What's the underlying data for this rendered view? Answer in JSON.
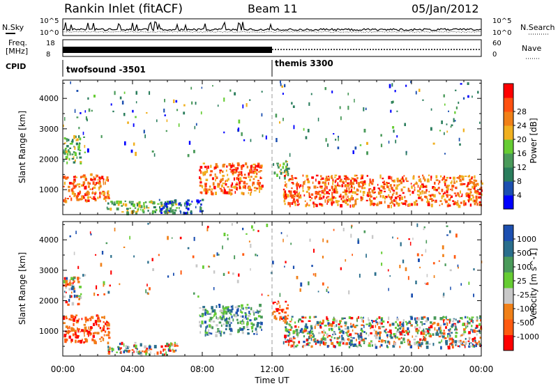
{
  "header": {
    "station": "Rankin Inlet (fitACF)",
    "beam": "Beam 11",
    "date": "05/Jan/2012"
  },
  "side_labels": {
    "nsky": "N.Sky",
    "freq_line1": "Freq.",
    "freq_line2": "[MHz]",
    "cpid": "CPID",
    "nsearch": "N.Search",
    "nave": "Nave"
  },
  "noise_axis": {
    "left_top": "10^5",
    "left_bottom": "10^0",
    "right_top": "10^5",
    "right_bottom": "10^0"
  },
  "freq_axis": {
    "left_top": "18",
    "left_bottom": "8",
    "right_top": "60",
    "right_bottom": "0"
  },
  "cpid_segments": [
    {
      "label": "twofsound -3501",
      "start": "00:00"
    },
    {
      "label": "themis 3300",
      "start": "12:00"
    }
  ],
  "colors": {
    "power": [
      "#0000ff",
      "#1c4fb0",
      "#2a7d5c",
      "#4a9a5a",
      "#66cc33",
      "#f0b020",
      "#f08018",
      "#ff5010",
      "#ff0000"
    ],
    "velocity": [
      "#ff0000",
      "#ff5a10",
      "#f08018",
      "#c8c8c8",
      "#66cc33",
      "#4a9a5a",
      "#2a6e8c",
      "#1c4fb0"
    ]
  },
  "chart_data": [
    {
      "type": "heatmap",
      "name": "power",
      "xlabel": "Time UT",
      "ylabel": "Slant Range [km]",
      "xlim": [
        0,
        24
      ],
      "ylim": [
        180,
        4600
      ],
      "x_ticks": [
        "00:00",
        "04:00",
        "08:00",
        "12:00",
        "16:00",
        "20:00",
        "00:00"
      ],
      "y_ticks": [
        1000,
        2000,
        3000,
        4000
      ],
      "colorbar_label": "Power [dB]",
      "colorbar_ticks": [
        "4",
        "8",
        "12",
        "16",
        "20",
        "24",
        "28"
      ],
      "echo_regions": [
        {
          "t0": 0.0,
          "t1": 2.6,
          "r0": 650,
          "r1": 1550,
          "level": "high"
        },
        {
          "t0": 0.0,
          "t1": 1.0,
          "r0": 1900,
          "r1": 2800,
          "level": "mid"
        },
        {
          "t0": 2.5,
          "t1": 6.5,
          "r0": 250,
          "r1": 650,
          "level": "mid"
        },
        {
          "t0": 5.5,
          "t1": 8.0,
          "r0": 250,
          "r1": 700,
          "level": "low"
        },
        {
          "t0": 7.8,
          "t1": 11.4,
          "r0": 900,
          "r1": 1900,
          "level": "high"
        },
        {
          "t0": 12.0,
          "t1": 12.9,
          "r0": 1400,
          "r1": 2000,
          "level": "mid"
        },
        {
          "t0": 12.6,
          "t1": 24.0,
          "r0": 500,
          "r1": 1500,
          "level": "high"
        }
      ]
    },
    {
      "type": "heatmap",
      "name": "velocity",
      "xlabel": "Time UT",
      "ylabel": "Slant Range [km]",
      "xlim": [
        0,
        24
      ],
      "ylim": [
        180,
        4600
      ],
      "x_ticks": [
        "00:00",
        "04:00",
        "08:00",
        "12:00",
        "16:00",
        "20:00",
        "00:00"
      ],
      "y_ticks": [
        1000,
        2000,
        3000,
        4000
      ],
      "colorbar_label": "Velocity [m s^-1]",
      "colorbar_ticks": [
        "1000",
        "500",
        "100",
        "25",
        "-25",
        "-100",
        "-500",
        "-1000"
      ],
      "echo_regions": [
        {
          "t0": 0.0,
          "t1": 2.6,
          "r0": 650,
          "r1": 1550,
          "level": "neg"
        },
        {
          "t0": 0.0,
          "t1": 1.0,
          "r0": 1900,
          "r1": 2800,
          "level": "mixed"
        },
        {
          "t0": 2.5,
          "t1": 6.5,
          "r0": 250,
          "r1": 650,
          "level": "mixed"
        },
        {
          "t0": 7.8,
          "t1": 11.4,
          "r0": 900,
          "r1": 1900,
          "level": "pos"
        },
        {
          "t0": 12.0,
          "t1": 12.9,
          "r0": 1400,
          "r1": 2000,
          "level": "neg"
        },
        {
          "t0": 12.6,
          "t1": 24.0,
          "r0": 500,
          "r1": 1500,
          "level": "mixed"
        }
      ]
    }
  ]
}
